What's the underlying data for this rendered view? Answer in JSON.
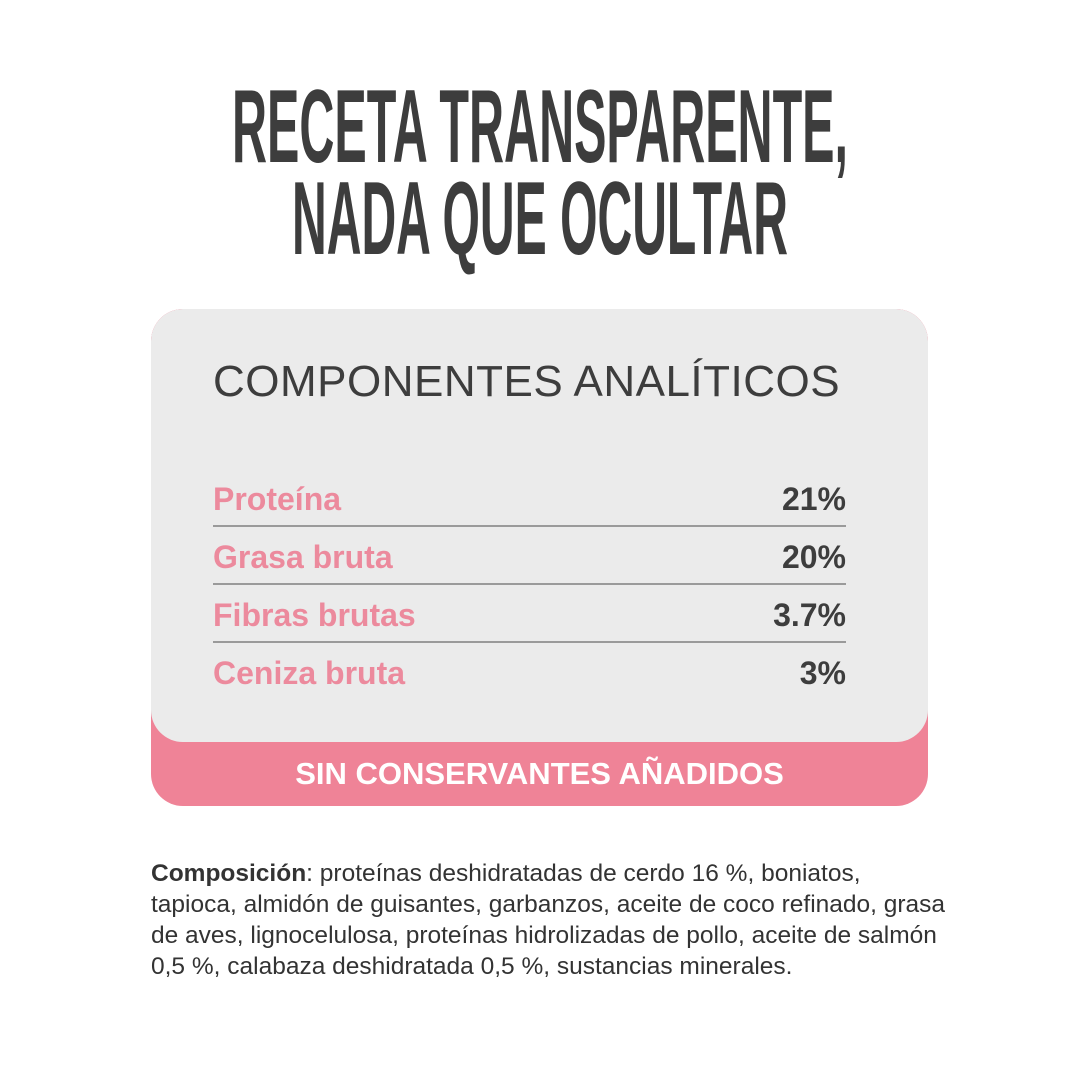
{
  "header": {
    "title_lines": [
      "RECETA TRANSPARENTE,",
      "NADA QUE OCULTAR"
    ]
  },
  "card": {
    "heading": "COMPONENTES ANALÍTICOS",
    "rows": [
      [
        "Proteína",
        "21%"
      ],
      [
        "Grasa bruta",
        "20%"
      ],
      [
        "Fibras brutas",
        "3.7%"
      ],
      [
        "Ceniza bruta",
        "3%"
      ]
    ],
    "banner": "SIN CONSERVANTES AÑADIDOS"
  },
  "composition": {
    "label": "Composición",
    "text": ": proteínas deshidratadas de cerdo 16 %, boniatos, tapioca, almidón de guisantes, garbanzos, aceite de coco refinado, grasa de aves, lignocelulosa, proteínas hidrolizadas de pollo, aceite de salmón 0,5 %, calabaza deshidratada 0,5 %, sustancias minerales."
  }
}
